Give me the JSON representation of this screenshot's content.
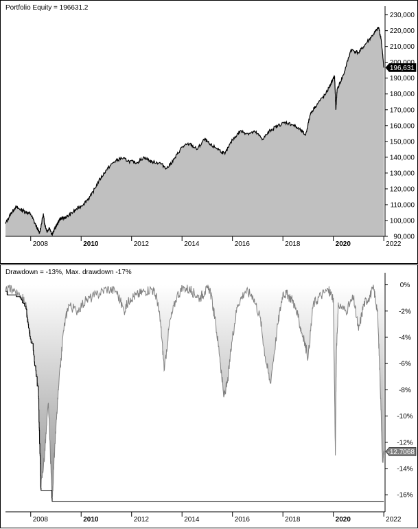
{
  "chart_data": [
    {
      "type": "area",
      "title": "Portfolio Equity = 196631.2",
      "ylim": [
        90000,
        232000
      ],
      "xlim": [
        2007.0,
        2022.05
      ],
      "grid": false,
      "y_ticks": [
        "230,000",
        "220,000",
        "210,000",
        "200,000",
        "190,000",
        "180,000",
        "170,000",
        "160,000",
        "150,000",
        "140,000",
        "130,000",
        "120,000",
        "110,000",
        "100,000",
        "90,000"
      ],
      "y_tick_values": [
        230000,
        220000,
        210000,
        200000,
        190000,
        180000,
        170000,
        160000,
        150000,
        140000,
        130000,
        120000,
        110000,
        100000,
        90000
      ],
      "x_ticks": [
        "2008",
        "2010",
        "2012",
        "2014",
        "2016",
        "2018",
        "2020",
        "2022"
      ],
      "x_tick_values": [
        2008,
        2010,
        2012,
        2014,
        2016,
        2018,
        2020,
        2022
      ],
      "bold_x_ticks": [
        "2010",
        "2020"
      ],
      "last_value_label": "196,631",
      "last_value": 196631,
      "colors": {
        "fill": "#c0c0c0",
        "line": "#000000"
      },
      "x": [
        2007.0,
        2007.2,
        2007.4,
        2007.6,
        2007.8,
        2008.0,
        2008.2,
        2008.35,
        2008.5,
        2008.55,
        2008.65,
        2008.75,
        2008.85,
        2008.95,
        2009.05,
        2009.15,
        2009.3,
        2009.5,
        2009.8,
        2010.1,
        2010.4,
        2010.7,
        2011.0,
        2011.3,
        2011.6,
        2011.9,
        2012.2,
        2012.5,
        2012.8,
        2013.1,
        2013.4,
        2013.7,
        2014.0,
        2014.3,
        2014.6,
        2014.9,
        2015.1,
        2015.4,
        2015.7,
        2016.0,
        2016.3,
        2016.6,
        2016.9,
        2017.2,
        2017.5,
        2017.8,
        2018.1,
        2018.4,
        2018.7,
        2018.9,
        2019.1,
        2019.4,
        2019.7,
        2019.9,
        2020.05,
        2020.1,
        2020.15,
        2020.4,
        2020.7,
        2021.0,
        2021.3,
        2021.6,
        2021.8,
        2021.9,
        2022.0
      ],
      "values": [
        98000,
        104000,
        108500,
        107000,
        105500,
        104000,
        97000,
        92000,
        104000,
        98000,
        93000,
        95500,
        90800,
        95000,
        97500,
        101000,
        101500,
        103000,
        107000,
        110500,
        116000,
        125000,
        132000,
        137000,
        139500,
        137500,
        136500,
        140000,
        137000,
        136500,
        133000,
        139000,
        146500,
        148500,
        145000,
        151500,
        148000,
        145500,
        142000,
        151000,
        156500,
        155000,
        156000,
        151500,
        157000,
        160000,
        162000,
        160500,
        157000,
        154000,
        168000,
        174500,
        180000,
        186500,
        191000,
        170000,
        183000,
        192000,
        208000,
        206000,
        212000,
        218000,
        222000,
        214000,
        196631
      ]
    },
    {
      "type": "area",
      "title": "Drawdown = -13%, Max. drawdown -17%",
      "ylim": [
        -17.3,
        0.5
      ],
      "xlim": [
        2007.0,
        2022.05
      ],
      "grid": false,
      "y_ticks": [
        "0%",
        "-2%",
        "-4%",
        "-6%",
        "-8%",
        "-10%",
        "-12%",
        "-14%",
        "-16%"
      ],
      "y_tick_values": [
        0,
        -2,
        -4,
        -6,
        -8,
        -10,
        -12,
        -14,
        -16
      ],
      "x_ticks": [
        "2008",
        "2010",
        "2012",
        "2014",
        "2016",
        "2018",
        "2020",
        "2022"
      ],
      "x_tick_values": [
        2008,
        2010,
        2012,
        2014,
        2016,
        2018,
        2020,
        2022
      ],
      "bold_x_ticks": [
        "2010",
        "2020"
      ],
      "last_value_label": "-12.7068",
      "last_value": -12.7068,
      "colors": {
        "line": "#808080",
        "max_line": "#000000",
        "fill_top": "#ffffff",
        "fill_bottom": "#909090"
      },
      "x": [
        2007.0,
        2007.3,
        2007.6,
        2007.8,
        2007.9,
        2008.1,
        2008.3,
        2008.4,
        2008.55,
        2008.7,
        2008.85,
        2008.95,
        2009.1,
        2009.3,
        2009.5,
        2009.8,
        2010.2,
        2010.6,
        2011.0,
        2011.4,
        2011.7,
        2011.95,
        2012.2,
        2012.5,
        2012.8,
        2013.0,
        2013.15,
        2013.3,
        2013.5,
        2013.8,
        2014.1,
        2014.4,
        2014.7,
        2014.9,
        2015.1,
        2015.3,
        2015.5,
        2015.65,
        2015.8,
        2016.0,
        2016.2,
        2016.5,
        2016.8,
        2017.1,
        2017.3,
        2017.5,
        2017.8,
        2018.0,
        2018.2,
        2018.4,
        2018.6,
        2018.8,
        2019.0,
        2019.2,
        2019.5,
        2019.8,
        2020.0,
        2020.08,
        2020.12,
        2020.2,
        2020.5,
        2020.8,
        2021.0,
        2021.2,
        2021.4,
        2021.6,
        2021.75,
        2021.85,
        2021.95,
        2022.0
      ],
      "values": [
        -0.5,
        -0.3,
        -0.8,
        -1.5,
        -3.0,
        -5.0,
        -8.0,
        -15.5,
        -13.0,
        -9.0,
        -16.5,
        -12.5,
        -8.0,
        -3.5,
        -1.5,
        -2.0,
        -1.2,
        -0.8,
        -0.3,
        -0.5,
        -2.0,
        -1.0,
        -0.8,
        -0.5,
        -0.3,
        -1.0,
        -3.0,
        -6.5,
        -3.0,
        -0.8,
        -0.2,
        -0.5,
        -1.0,
        -0.5,
        -0.3,
        -2.5,
        -5.5,
        -8.5,
        -7.5,
        -4.0,
        -1.5,
        -0.5,
        -0.8,
        -2.5,
        -5.5,
        -7.5,
        -3.0,
        -0.6,
        -0.8,
        -1.2,
        -2.5,
        -4.0,
        -5.5,
        -1.5,
        -0.8,
        -0.4,
        -1.0,
        -13.0,
        -5.0,
        -1.5,
        -2.0,
        -1.0,
        -3.5,
        -1.5,
        -1.0,
        -0.3,
        -2.0,
        -7.0,
        -13.5,
        -12.7068
      ]
    }
  ]
}
